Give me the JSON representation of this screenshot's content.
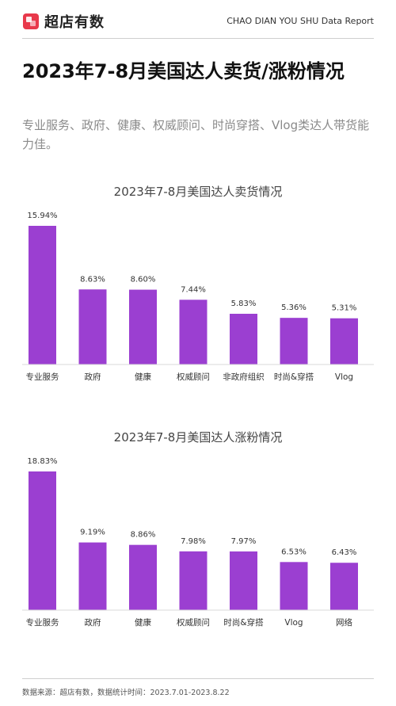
{
  "header": {
    "brand": "超店有数",
    "report_label": "CHAO DIAN YOU SHU Data Report"
  },
  "title": "2023年7-8月美国达人卖货/涨粉情况",
  "subtitle": "专业服务、政府、健康、权威顾问、时尚穿搭、Vlog类达人带货能力佳。",
  "footer": "数据来源：超店有数，数据统计时间：2023.7.01-2023.8.22",
  "colors": {
    "bar": "#9b3fd1",
    "brand": "#e8394b"
  },
  "chart_data": [
    {
      "type": "bar",
      "title": "2023年7-8月美国达人卖货情况",
      "categories": [
        "专业服务",
        "政府",
        "健康",
        "权威顾问",
        "非政府组织",
        "时尚&穿搭",
        "Vlog"
      ],
      "values": [
        15.94,
        8.63,
        8.6,
        7.44,
        5.83,
        5.36,
        5.31
      ],
      "labels": [
        "15.94%",
        "8.63%",
        "8.60%",
        "7.44%",
        "5.83%",
        "5.36%",
        "5.31%"
      ],
      "unit": "%",
      "grid": false
    },
    {
      "type": "bar",
      "title": "2023年7-8月美国达人涨粉情况",
      "categories": [
        "专业服务",
        "政府",
        "健康",
        "权威顾问",
        "时尚&穿搭",
        "Vlog",
        "网络"
      ],
      "values": [
        18.83,
        9.19,
        8.86,
        7.98,
        7.97,
        6.53,
        6.43
      ],
      "labels": [
        "18.83%",
        "9.19%",
        "8.86%",
        "7.98%",
        "7.97%",
        "6.53%",
        "6.43%"
      ],
      "unit": "%",
      "grid": false
    }
  ]
}
